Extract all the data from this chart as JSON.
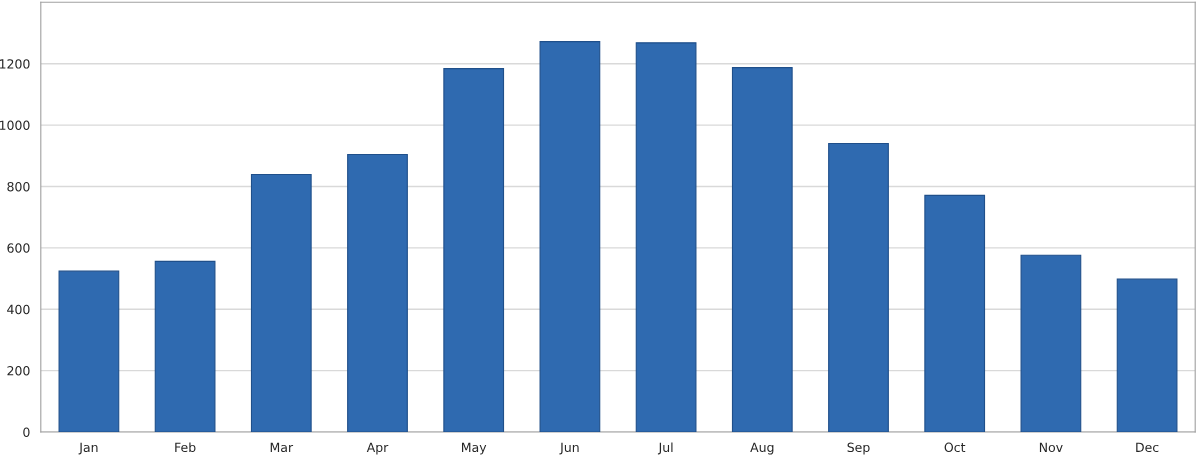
{
  "chart_data": {
    "type": "bar",
    "categories": [
      "Jan",
      "Feb",
      "Mar",
      "Apr",
      "May",
      "Jun",
      "Jul",
      "Aug",
      "Sep",
      "Oct",
      "Nov",
      "Dec"
    ],
    "values": [
      524,
      556,
      839,
      904,
      1184,
      1272,
      1268,
      1187,
      940,
      771,
      576,
      498
    ],
    "color": "#2f6ab0",
    "ylim": [
      0,
      1400
    ],
    "yticks": [
      0,
      200,
      400,
      600,
      800,
      1000,
      1200
    ],
    "grid": "y"
  }
}
